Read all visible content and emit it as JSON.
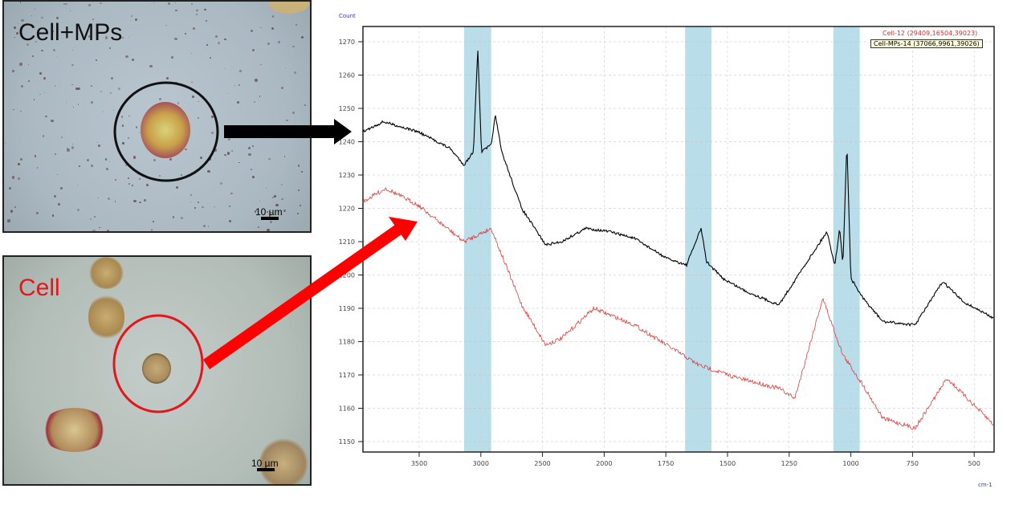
{
  "panels": {
    "top": {
      "label": "Cell+MPs",
      "label_color": "#111111",
      "circle_color": "#111111",
      "scale_label": "10 µm"
    },
    "bottom": {
      "label": "Cell",
      "label_color": "#e8141b",
      "circle_color": "#e8141b",
      "scale_label": "10 µm"
    }
  },
  "arrows": {
    "top_color": "#000000",
    "bottom_color": "#ff0000"
  },
  "chart_data": {
    "type": "line",
    "ylabel": "Count",
    "xlabel": "cm-1",
    "x_ticks": [
      3500,
      3000,
      2500,
      2000,
      1750,
      1500,
      1250,
      1000,
      750,
      500
    ],
    "x_axis_note": "axis labels are evenly spaced (non-uniform scale)",
    "x_reversed": true,
    "xlim": [
      3950,
      420
    ],
    "y_ticks": [
      1150,
      1160,
      1170,
      1180,
      1190,
      1200,
      1210,
      1220,
      1230,
      1240,
      1250,
      1260,
      1270
    ],
    "ylim": [
      1146,
      1275
    ],
    "grid": true,
    "legend_position": "top-right",
    "highlight_bands": [
      [
        3136,
        2916
      ],
      [
        1672,
        1565
      ],
      [
        1071,
        964
      ]
    ],
    "band_color": "#add8e6",
    "series": [
      {
        "name": "Cell-12 (29409,16504,39023)",
        "color": "#e02020",
        "x": [
          3955,
          3770,
          3510,
          3136,
          2916,
          2669,
          2474,
          2344,
          2084,
          1877,
          1747,
          1617,
          1455,
          1292,
          1227,
          1114,
          1032,
          951,
          870,
          740,
          610,
          420
        ],
        "y": [
          1222,
          1226,
          1221,
          1210,
          1214,
          1191,
          1179,
          1181,
          1190,
          1185,
          1179,
          1173,
          1169,
          1166,
          1163,
          1193,
          1176,
          1167,
          1157,
          1154,
          1169,
          1155
        ]
      },
      {
        "name": "Cell-MPs-14 (37066,9961,39026)",
        "color": "#000000",
        "x": [
          3955,
          3790,
          3510,
          3250,
          3136,
          3060,
          3025,
          2995,
          2916,
          2883,
          2831,
          2669,
          2474,
          2344,
          2149,
          1977,
          1877,
          1747,
          1666,
          1607,
          1585,
          1520,
          1423,
          1292,
          1195,
          1097,
          1065,
          1045,
          1032,
          1016,
          1000,
          951,
          870,
          740,
          627,
          545,
          420
        ],
        "y": [
          1243,
          1246,
          1243,
          1238,
          1233,
          1237,
          1268,
          1237,
          1239,
          1248,
          1237,
          1220,
          1209,
          1210,
          1214,
          1213,
          1211,
          1205,
          1203,
          1214,
          1204,
          1199,
          1195,
          1191,
          1202,
          1213,
          1203,
          1214,
          1203,
          1240,
          1199,
          1193,
          1186,
          1185,
          1198,
          1192,
          1187
        ]
      }
    ]
  }
}
